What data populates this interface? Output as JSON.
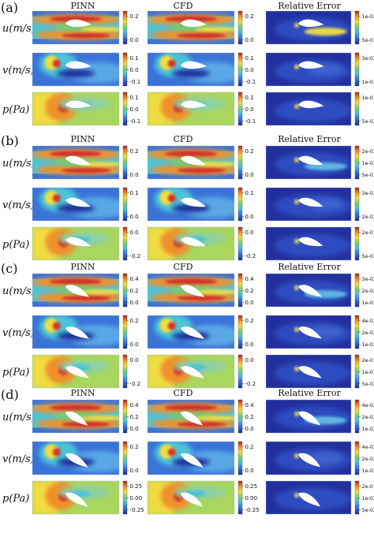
{
  "column_headers": [
    "PINN",
    "CFD",
    "Relative Error"
  ],
  "panels": [
    {
      "label": "(a)",
      "rows": [
        {
          "label": "u(m/s)",
          "field": "u",
          "ticks": [
            "0.2",
            "0.0"
          ],
          "err_ticks": [
            "1e-02",
            "5e-03"
          ]
        },
        {
          "label": "v(m/s)",
          "field": "v",
          "ticks": [
            "0.1",
            "0.0",
            "-0.1"
          ],
          "err_ticks": [
            "3e-02",
            "1e-02"
          ]
        },
        {
          "label": "p(Pa)",
          "field": "p",
          "ticks": [
            "0.1",
            "0.0",
            "-0.1"
          ],
          "err_ticks": [
            "1e-01",
            "5e-02"
          ]
        }
      ]
    },
    {
      "label": "(b)",
      "rows": [
        {
          "label": "u(m/s)",
          "field": "u",
          "ticks": [
            "0.2",
            "0.0"
          ],
          "err_ticks": [
            "2e-02",
            "1e-02",
            "5e-03"
          ]
        },
        {
          "label": "v(m/s)",
          "field": "v",
          "ticks": [
            "0.1",
            "0.0"
          ],
          "err_ticks": [
            "3e-02",
            "2e-02"
          ]
        },
        {
          "label": "p(Pa)",
          "field": "p",
          "ticks": [
            "0.0",
            "-0.2"
          ],
          "err_ticks": [
            "2e-01",
            "5e-02"
          ]
        }
      ]
    },
    {
      "label": "(c)",
      "rows": [
        {
          "label": "u(m/s)",
          "field": "u",
          "ticks": [
            "0.4",
            "0.2",
            "0.0"
          ],
          "err_ticks": [
            "3e-02",
            "2e-02",
            "1e-02"
          ]
        },
        {
          "label": "v(m/s)",
          "field": "v",
          "ticks": [
            "0.2",
            "0.0"
          ],
          "err_ticks": [
            "4e-02",
            "2e-02",
            "1e-02"
          ]
        },
        {
          "label": "p(Pa)",
          "field": "p",
          "ticks": [
            "0.0",
            "-0.2"
          ],
          "err_ticks": [
            "2e-01",
            "1e-01",
            "5e-02"
          ]
        }
      ]
    },
    {
      "label": "(d)",
      "rows": [
        {
          "label": "u(m/s)",
          "field": "u",
          "ticks": [
            "0.4",
            "0.2",
            "0.0"
          ],
          "err_ticks": [
            "4e-02",
            "2e-02",
            "1e-02"
          ]
        },
        {
          "label": "v(m/s)",
          "field": "v",
          "ticks": [
            "0.2",
            "0.0"
          ],
          "err_ticks": [
            "4e-02",
            "2e-02",
            "1e-02"
          ]
        },
        {
          "label": "p(Pa)",
          "field": "p",
          "ticks": [
            "0.25",
            "0.00",
            "-0.25"
          ],
          "err_ticks": [
            "2e-01",
            "1e-02",
            "5e-02"
          ]
        }
      ]
    }
  ],
  "colors": {
    "jet_dark_blue": "#1c2f9a",
    "jet_blue": "#3a73d8",
    "jet_cyan": "#4bc4d8",
    "jet_green": "#78cc6a",
    "jet_yellow": "#f0dc42",
    "jet_orange": "#f0902a",
    "jet_red": "#d2302a",
    "airfoil": "#ffffff"
  }
}
